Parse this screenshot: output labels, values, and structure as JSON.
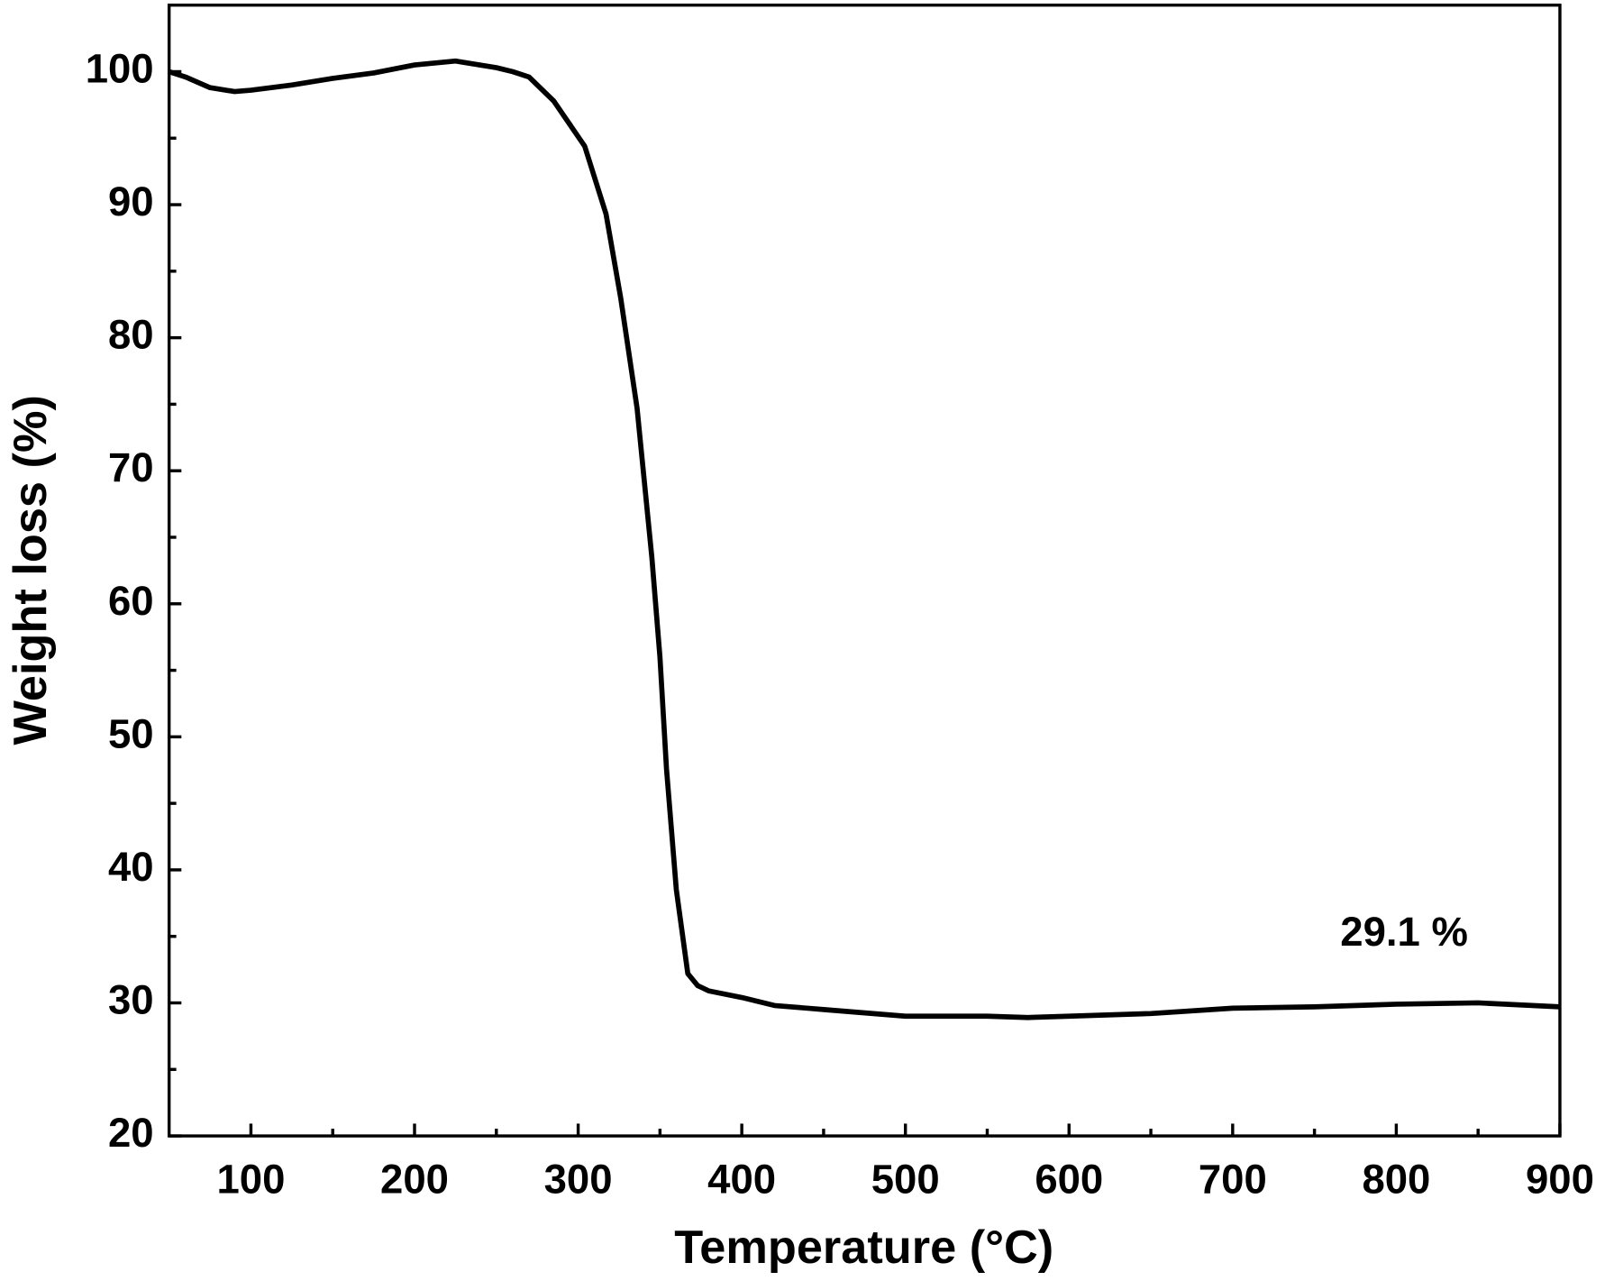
{
  "chart_data": {
    "type": "line",
    "x_label": "Temperature (°C)",
    "y_label": "Weight loss (%)",
    "annotation": "29.1 %",
    "xlim": [
      50,
      900
    ],
    "xticks": [
      100,
      200,
      300,
      400,
      500,
      600,
      700,
      800,
      900
    ],
    "xminorticks": [
      150,
      250,
      350,
      450,
      550,
      650,
      750,
      850
    ],
    "ylim": [
      20,
      105
    ],
    "yticks": [
      20,
      30,
      40,
      50,
      60,
      70,
      80,
      90,
      100
    ],
    "yminorticks": [
      25,
      35,
      45,
      55,
      65,
      75,
      85,
      95
    ],
    "series": [
      {
        "color": "#000000",
        "x": [
          50,
          60,
          75,
          90,
          100,
          125,
          150,
          175,
          200,
          225,
          250,
          260,
          270,
          285,
          304,
          317,
          326,
          336,
          345,
          350,
          354,
          360,
          367,
          373,
          380,
          400,
          420,
          450,
          500,
          550,
          575,
          600,
          650,
          700,
          750,
          800,
          850,
          900
        ],
        "values": [
          100,
          99.6,
          98.8,
          98.5,
          98.6,
          99.0,
          99.5,
          99.9,
          100.5,
          100.8,
          100.3,
          100.0,
          99.6,
          97.8,
          94.4,
          89.3,
          83.0,
          74.7,
          63.5,
          56.0,
          47.6,
          38.5,
          32.2,
          31.3,
          30.9,
          30.4,
          29.8,
          29.5,
          29.0,
          29.0,
          28.9,
          29.0,
          29.2,
          29.6,
          29.7,
          29.9,
          30.0,
          29.7
        ]
      }
    ]
  }
}
